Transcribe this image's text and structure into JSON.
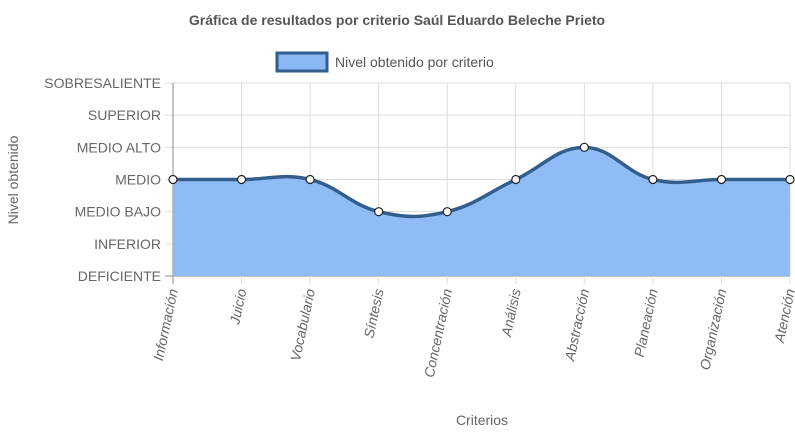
{
  "chart_data": {
    "type": "area",
    "title": "Gráfica de resultados por criterio Saúl Eduardo Beleche Prieto",
    "xlabel": "Criterios",
    "ylabel": "Nivel obtenido",
    "y_levels": [
      "DEFICIENTE",
      "INFERIOR",
      "MEDIO BAJO",
      "MEDIO",
      "MEDIO ALTO",
      "SUPERIOR",
      "SOBRESALIENTE"
    ],
    "categories": [
      "Información",
      "Juicio",
      "Vocabulario",
      "Síntesis",
      "Concentración",
      "Análisis",
      "Abstracción",
      "Planeación",
      "Organización",
      "Atención"
    ],
    "series": [
      {
        "name": "Nivel obtenido por criterio",
        "values": [
          "MEDIO",
          "MEDIO",
          "MEDIO",
          "MEDIO BAJO",
          "MEDIO BAJO",
          "MEDIO",
          "MEDIO ALTO",
          "MEDIO",
          "MEDIO",
          "MEDIO"
        ]
      }
    ],
    "legend_position": "top",
    "grid": true,
    "colors": {
      "fill": "#89b8f5",
      "line": "#335d8d",
      "grid": "#dddddd",
      "axis": "#888888"
    }
  }
}
